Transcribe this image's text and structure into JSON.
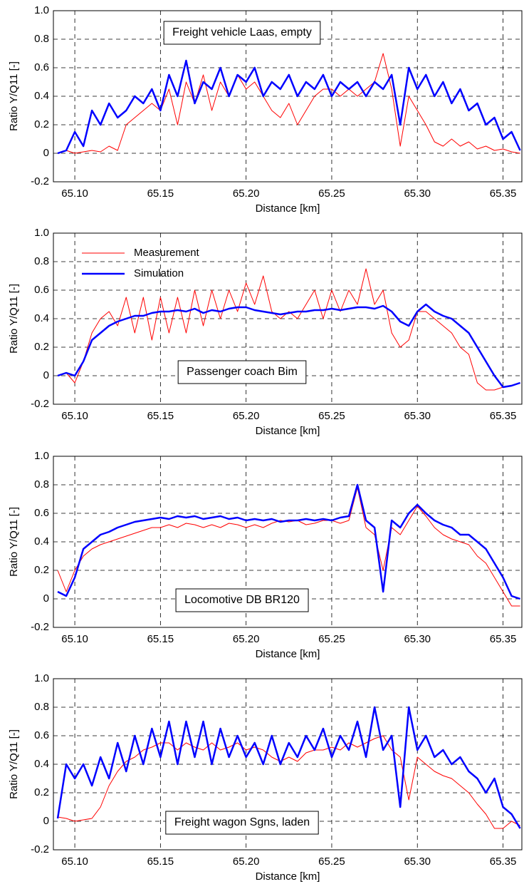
{
  "chart_data": [
    {
      "type": "line",
      "annotation": "Freight vehicle Laas, empty",
      "x_label": "Distance [km]",
      "y_label": "Ratio Y/Q11  [-]",
      "xlim": [
        65.0875,
        65.361
      ],
      "ylim": [
        -0.2,
        1.0
      ],
      "grid": true,
      "xticks": [
        {
          "value": 65.1,
          "label": "65.10"
        },
        65.15,
        {
          "value": 65.2,
          "label": "65.20"
        },
        65.25,
        {
          "value": 65.3,
          "label": "65.30"
        },
        65.35
      ],
      "yticks": [
        -0.2,
        0,
        0.2,
        0.4,
        0.6,
        0.8,
        {
          "value": 1.0,
          "label": "1.0"
        }
      ],
      "x": [
        65.09,
        65.095,
        65.1,
        65.105,
        65.11,
        65.115,
        65.12,
        65.125,
        65.13,
        65.135,
        65.14,
        65.145,
        65.15,
        65.155,
        65.16,
        65.165,
        65.17,
        65.175,
        65.18,
        65.185,
        65.19,
        65.195,
        65.2,
        65.205,
        65.21,
        65.215,
        65.22,
        65.225,
        65.23,
        65.235,
        65.24,
        65.245,
        65.25,
        65.255,
        65.26,
        65.265,
        65.27,
        65.275,
        65.28,
        65.285,
        65.29,
        65.295,
        65.3,
        65.305,
        65.31,
        65.315,
        65.32,
        65.325,
        65.33,
        65.335,
        65.34,
        65.345,
        65.35,
        65.355,
        65.36
      ],
      "series": [
        {
          "color": "#ff0000",
          "values": [
            0,
            0.02,
            0,
            0.01,
            0.02,
            0.01,
            0.05,
            0.02,
            0.2,
            0.25,
            0.3,
            0.35,
            0.3,
            0.45,
            0.2,
            0.5,
            0.35,
            0.55,
            0.3,
            0.5,
            0.4,
            0.55,
            0.45,
            0.5,
            0.4,
            0.3,
            0.25,
            0.35,
            0.2,
            0.3,
            0.4,
            0.45,
            0.45,
            0.4,
            0.45,
            0.4,
            0.45,
            0.5,
            0.7,
            0.45,
            0.05,
            0.4,
            0.3,
            0.2,
            0.08,
            0.05,
            0.1,
            0.05,
            0.08,
            0.03,
            0.05,
            0.02,
            0.03,
            0.01,
            0
          ]
        },
        {
          "color": "#0000ff",
          "values": [
            0,
            0.02,
            0.15,
            0.05,
            0.3,
            0.2,
            0.35,
            0.25,
            0.3,
            0.4,
            0.35,
            0.45,
            0.3,
            0.55,
            0.4,
            0.65,
            0.35,
            0.5,
            0.45,
            0.6,
            0.4,
            0.55,
            0.5,
            0.6,
            0.4,
            0.5,
            0.45,
            0.55,
            0.4,
            0.5,
            0.45,
            0.55,
            0.4,
            0.5,
            0.45,
            0.5,
            0.4,
            0.5,
            0.45,
            0.55,
            0.2,
            0.6,
            0.45,
            0.55,
            0.4,
            0.5,
            0.35,
            0.45,
            0.3,
            0.35,
            0.2,
            0.25,
            0.1,
            0.15,
            0.02
          ]
        }
      ]
    },
    {
      "type": "line",
      "annotation": "Passenger coach Bim",
      "x_label": "Distance [km]",
      "y_label": "Ratio Y/Q11  [-]",
      "xlim": [
        65.0875,
        65.361
      ],
      "ylim": [
        -0.2,
        1.0
      ],
      "grid": true,
      "legend": "top-left",
      "xticks": [
        {
          "value": 65.1,
          "label": "65.10"
        },
        65.15,
        {
          "value": 65.2,
          "label": "65.20"
        },
        65.25,
        {
          "value": 65.3,
          "label": "65.30"
        },
        65.35
      ],
      "yticks": [
        -0.2,
        0,
        0.2,
        0.4,
        0.6,
        0.8,
        {
          "value": 1.0,
          "label": "1.0"
        }
      ],
      "x": [
        65.09,
        65.095,
        65.1,
        65.105,
        65.11,
        65.115,
        65.12,
        65.125,
        65.13,
        65.135,
        65.14,
        65.145,
        65.15,
        65.155,
        65.16,
        65.165,
        65.17,
        65.175,
        65.18,
        65.185,
        65.19,
        65.195,
        65.2,
        65.205,
        65.21,
        65.215,
        65.22,
        65.225,
        65.23,
        65.235,
        65.24,
        65.245,
        65.25,
        65.255,
        65.26,
        65.265,
        65.27,
        65.275,
        65.28,
        65.285,
        65.29,
        65.295,
        65.3,
        65.305,
        65.31,
        65.315,
        65.32,
        65.325,
        65.33,
        65.335,
        65.34,
        65.345,
        65.35,
        65.355,
        65.36
      ],
      "series": [
        {
          "name": "Measurement",
          "color": "#ff0000",
          "values": [
            0,
            0.02,
            -0.05,
            0.1,
            0.3,
            0.4,
            0.45,
            0.35,
            0.55,
            0.3,
            0.55,
            0.25,
            0.55,
            0.3,
            0.55,
            0.3,
            0.6,
            0.35,
            0.6,
            0.4,
            0.6,
            0.45,
            0.65,
            0.5,
            0.7,
            0.45,
            0.4,
            0.45,
            0.4,
            0.5,
            0.6,
            0.4,
            0.6,
            0.45,
            0.6,
            0.5,
            0.75,
            0.5,
            0.6,
            0.3,
            0.2,
            0.25,
            0.45,
            0.45,
            0.4,
            0.35,
            0.3,
            0.2,
            0.15,
            -0.05,
            -0.1,
            -0.1,
            -0.08,
            -0.07,
            -0.05
          ]
        },
        {
          "name": "Simulation",
          "color": "#0000ff",
          "values": [
            0,
            0.02,
            0,
            0.1,
            0.25,
            0.3,
            0.35,
            0.38,
            0.4,
            0.42,
            0.42,
            0.44,
            0.45,
            0.45,
            0.46,
            0.45,
            0.47,
            0.44,
            0.46,
            0.45,
            0.47,
            0.48,
            0.48,
            0.46,
            0.45,
            0.44,
            0.43,
            0.44,
            0.45,
            0.45,
            0.46,
            0.46,
            0.47,
            0.46,
            0.47,
            0.48,
            0.48,
            0.47,
            0.49,
            0.45,
            0.38,
            0.35,
            0.45,
            0.5,
            0.45,
            0.42,
            0.4,
            0.35,
            0.3,
            0.2,
            0.1,
            0,
            -0.08,
            -0.07,
            -0.05
          ]
        }
      ]
    },
    {
      "type": "line",
      "annotation": "Locomotive DB BR120",
      "x_label": "Distance [km]",
      "y_label": "Ratio Y/Q11  [-]",
      "xlim": [
        65.0875,
        65.361
      ],
      "ylim": [
        -0.2,
        1.0
      ],
      "grid": true,
      "xticks": [
        {
          "value": 65.1,
          "label": "65.10"
        },
        65.15,
        {
          "value": 65.2,
          "label": "65.20"
        },
        65.25,
        {
          "value": 65.3,
          "label": "65.30"
        },
        65.35
      ],
      "yticks": [
        -0.2,
        0,
        0.2,
        0.4,
        0.6,
        0.8,
        {
          "value": 1.0,
          "label": "1.0"
        }
      ],
      "x": [
        65.09,
        65.095,
        65.1,
        65.105,
        65.11,
        65.115,
        65.12,
        65.125,
        65.13,
        65.135,
        65.14,
        65.145,
        65.15,
        65.155,
        65.16,
        65.165,
        65.17,
        65.175,
        65.18,
        65.185,
        65.19,
        65.195,
        65.2,
        65.205,
        65.21,
        65.215,
        65.22,
        65.225,
        65.23,
        65.235,
        65.24,
        65.245,
        65.25,
        65.255,
        65.26,
        65.265,
        65.27,
        65.275,
        65.28,
        65.285,
        65.29,
        65.295,
        65.3,
        65.305,
        65.31,
        65.315,
        65.32,
        65.325,
        65.33,
        65.335,
        65.34,
        65.345,
        65.35,
        65.355,
        65.36
      ],
      "series": [
        {
          "color": "#ff0000",
          "values": [
            0.2,
            0.05,
            0.2,
            0.3,
            0.35,
            0.38,
            0.4,
            0.42,
            0.44,
            0.46,
            0.48,
            0.5,
            0.5,
            0.52,
            0.5,
            0.53,
            0.52,
            0.5,
            0.52,
            0.5,
            0.53,
            0.52,
            0.5,
            0.52,
            0.5,
            0.53,
            0.55,
            0.54,
            0.55,
            0.52,
            0.53,
            0.55,
            0.55,
            0.53,
            0.55,
            0.78,
            0.5,
            0.45,
            0.2,
            0.5,
            0.45,
            0.55,
            0.65,
            0.58,
            0.5,
            0.45,
            0.42,
            0.4,
            0.38,
            0.3,
            0.25,
            0.15,
            0.05,
            -0.05,
            -0.05
          ]
        },
        {
          "color": "#0000ff",
          "values": [
            0.05,
            0.02,
            0.15,
            0.35,
            0.4,
            0.45,
            0.47,
            0.5,
            0.52,
            0.54,
            0.55,
            0.56,
            0.57,
            0.56,
            0.58,
            0.57,
            0.58,
            0.56,
            0.57,
            0.58,
            0.56,
            0.57,
            0.55,
            0.56,
            0.55,
            0.56,
            0.54,
            0.55,
            0.55,
            0.56,
            0.55,
            0.56,
            0.55,
            0.57,
            0.58,
            0.8,
            0.55,
            0.5,
            0.05,
            0.55,
            0.5,
            0.6,
            0.66,
            0.6,
            0.55,
            0.52,
            0.5,
            0.45,
            0.45,
            0.4,
            0.35,
            0.25,
            0.15,
            0.02,
            0
          ]
        }
      ]
    },
    {
      "type": "line",
      "annotation": "Freight wagon Sgns, laden",
      "x_label": "Distance [km]",
      "y_label": "Ratio Y/Q11  [-]",
      "xlim": [
        65.0875,
        65.361
      ],
      "ylim": [
        -0.2,
        1.0
      ],
      "grid": true,
      "xticks": [
        {
          "value": 65.1,
          "label": "65.10"
        },
        65.15,
        {
          "value": 65.2,
          "label": "65.20"
        },
        65.25,
        {
          "value": 65.3,
          "label": "65.30"
        },
        65.35
      ],
      "yticks": [
        -0.2,
        0,
        0.2,
        0.4,
        0.6,
        0.8,
        {
          "value": 1.0,
          "label": "1.0"
        }
      ],
      "x": [
        65.09,
        65.095,
        65.1,
        65.105,
        65.11,
        65.115,
        65.12,
        65.125,
        65.13,
        65.135,
        65.14,
        65.145,
        65.15,
        65.155,
        65.16,
        65.165,
        65.17,
        65.175,
        65.18,
        65.185,
        65.19,
        65.195,
        65.2,
        65.205,
        65.21,
        65.215,
        65.22,
        65.225,
        65.23,
        65.235,
        65.24,
        65.245,
        65.25,
        65.255,
        65.26,
        65.265,
        65.27,
        65.275,
        65.28,
        65.285,
        65.29,
        65.295,
        65.3,
        65.305,
        65.31,
        65.315,
        65.32,
        65.325,
        65.33,
        65.335,
        65.34,
        65.345,
        65.35,
        65.355,
        65.36
      ],
      "series": [
        {
          "color": "#ff0000",
          "values": [
            0.03,
            0.02,
            0,
            0.01,
            0.02,
            0.1,
            0.25,
            0.35,
            0.42,
            0.45,
            0.5,
            0.52,
            0.55,
            0.55,
            0.5,
            0.55,
            0.52,
            0.5,
            0.55,
            0.5,
            0.52,
            0.55,
            0.5,
            0.52,
            0.5,
            0.45,
            0.42,
            0.45,
            0.42,
            0.48,
            0.5,
            0.5,
            0.52,
            0.5,
            0.55,
            0.52,
            0.55,
            0.58,
            0.6,
            0.5,
            0.45,
            0.15,
            0.45,
            0.4,
            0.35,
            0.32,
            0.3,
            0.25,
            0.2,
            0.12,
            0.05,
            -0.05,
            -0.05,
            0,
            -0.03
          ]
        },
        {
          "color": "#0000ff",
          "values": [
            0.02,
            0.4,
            0.3,
            0.4,
            0.25,
            0.45,
            0.3,
            0.55,
            0.35,
            0.6,
            0.4,
            0.65,
            0.45,
            0.7,
            0.4,
            0.7,
            0.45,
            0.7,
            0.4,
            0.65,
            0.45,
            0.6,
            0.45,
            0.55,
            0.4,
            0.6,
            0.4,
            0.55,
            0.45,
            0.6,
            0.5,
            0.65,
            0.45,
            0.6,
            0.5,
            0.7,
            0.45,
            0.8,
            0.5,
            0.6,
            0.1,
            0.8,
            0.5,
            0.6,
            0.45,
            0.5,
            0.4,
            0.45,
            0.35,
            0.3,
            0.2,
            0.3,
            0.1,
            0.05,
            -0.05
          ]
        }
      ]
    }
  ]
}
